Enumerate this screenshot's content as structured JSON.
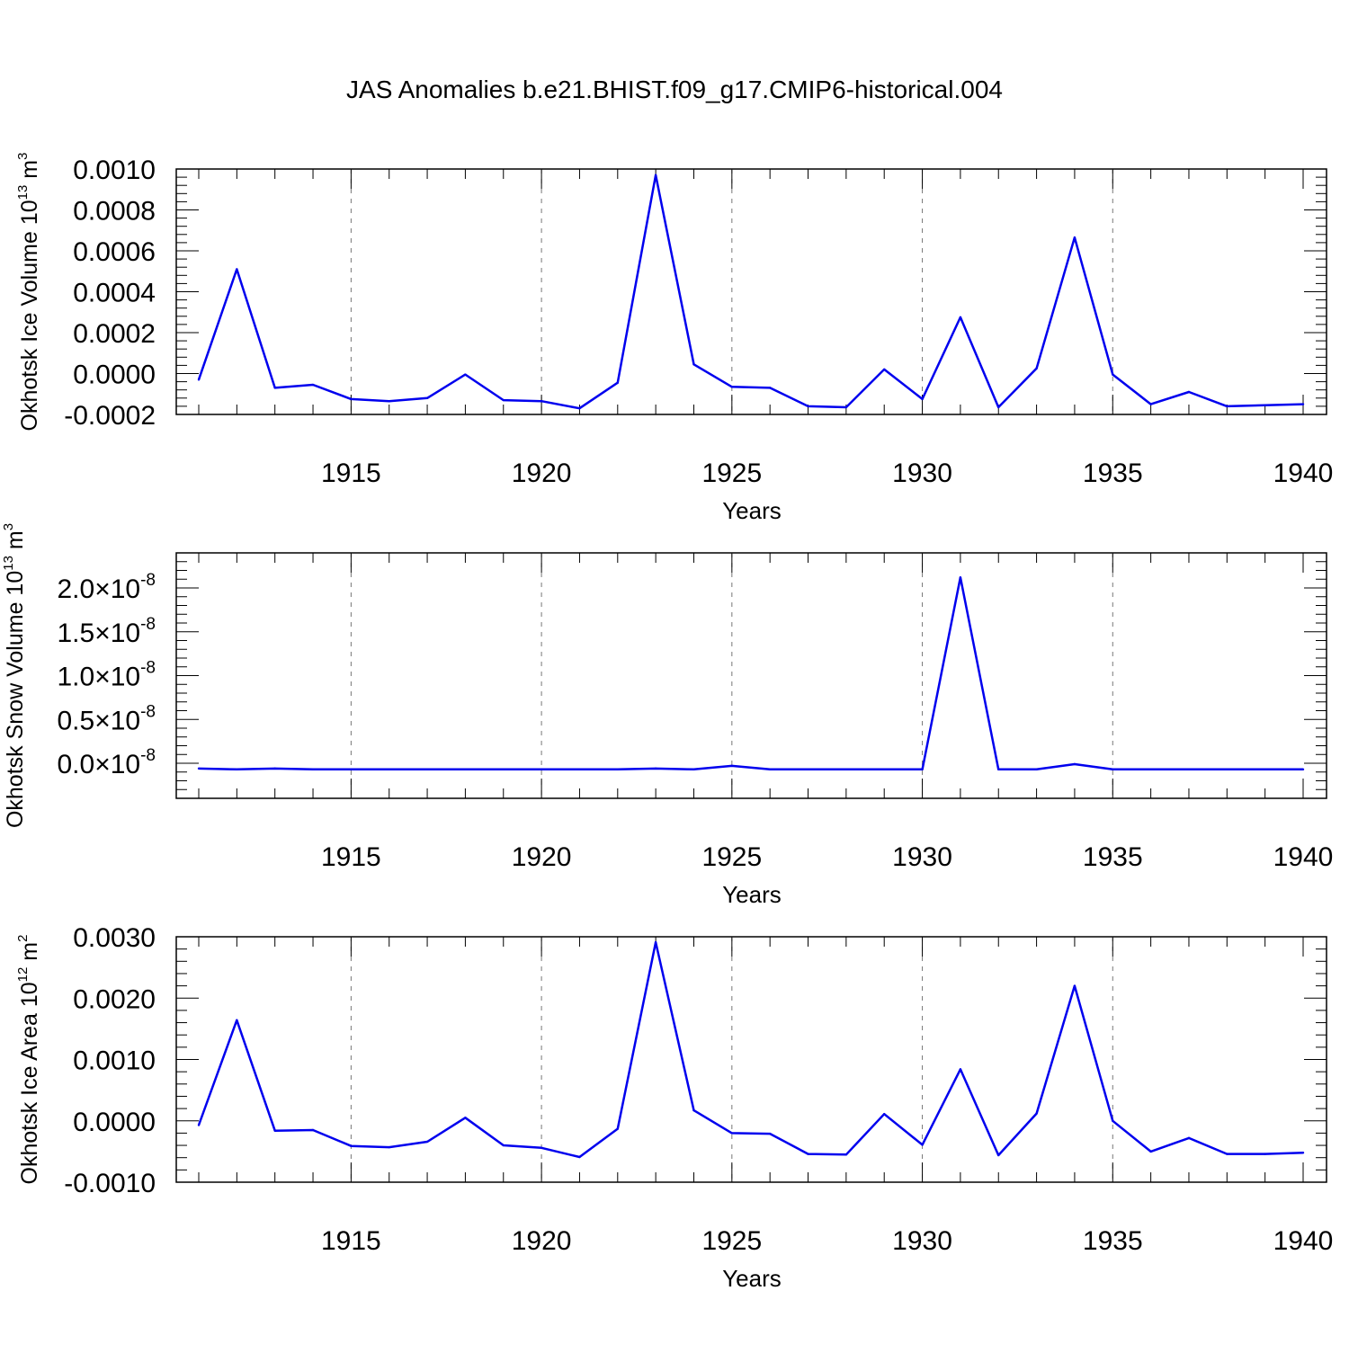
{
  "figure": {
    "title": "JAS Anomalies b.e21.BHIST.f09_g17.CMIP6-historical.004"
  },
  "colors": {
    "line": "#0000ee",
    "axis": "#000000",
    "grid": "#777777"
  },
  "chart_data": [
    {
      "type": "line",
      "ylabel": "Okhotsk Ice Volume 10",
      "ylabel_exp": "13",
      "ylabel_unit": " m",
      "ylabel_unit_exp": "3",
      "xlabel": "Years",
      "xlim": [
        1911,
        1940
      ],
      "ylim": [
        -0.0002,
        0.001
      ],
      "x_ticks": [
        1915,
        1920,
        1925,
        1930,
        1935,
        1940
      ],
      "y_ticks": [
        -0.0002,
        0.0,
        0.0002,
        0.0004,
        0.0006,
        0.0008,
        0.001
      ],
      "y_tick_labels": [
        "-0.0002",
        "0.0000",
        "0.0002",
        "0.0004",
        "0.0006",
        "0.0008",
        "0.0010"
      ],
      "x": [
        1911,
        1912,
        1913,
        1914,
        1915,
        1916,
        1917,
        1918,
        1919,
        1920,
        1921,
        1922,
        1923,
        1924,
        1925,
        1926,
        1927,
        1928,
        1929,
        1930,
        1931,
        1932,
        1933,
        1934,
        1935,
        1936,
        1937,
        1938,
        1939,
        1940
      ],
      "series": [
        {
          "name": "Okhotsk Ice Volume",
          "values": [
            -3e-05,
            0.00051,
            -7e-05,
            -5.5e-05,
            -0.000125,
            -0.000135,
            -0.00012,
            -5e-06,
            -0.00013,
            -0.000135,
            -0.00017,
            -4.5e-05,
            0.00097,
            4.5e-05,
            -6.5e-05,
            -7e-05,
            -0.00016,
            -0.000165,
            2e-05,
            -0.000125,
            0.000275,
            -0.000165,
            2.5e-05,
            0.000665,
            -5e-06,
            -0.00015,
            -9e-05,
            -0.00016,
            -0.000155,
            -0.00015
          ]
        }
      ]
    },
    {
      "type": "line",
      "ylabel": "Okhotsk Snow Volume 10",
      "ylabel_exp": "13",
      "ylabel_unit": " m",
      "ylabel_unit_exp": "3",
      "xlabel": "Years",
      "xlim": [
        1911,
        1940
      ],
      "ylim": [
        -4e-09,
        2.4e-08
      ],
      "x_ticks": [
        1915,
        1920,
        1925,
        1930,
        1935,
        1940
      ],
      "y_ticks": [
        0.0,
        5e-09,
        1e-08,
        1.5e-08,
        2e-08
      ],
      "y_tick_mantissas": [
        "0.0",
        "0.5",
        "1.0",
        "1.5",
        "2.0"
      ],
      "y_tick_times": "×10",
      "y_tick_exp": "-8",
      "x": [
        1911,
        1912,
        1913,
        1914,
        1915,
        1916,
        1917,
        1918,
        1919,
        1920,
        1921,
        1922,
        1923,
        1924,
        1925,
        1926,
        1927,
        1928,
        1929,
        1930,
        1931,
        1932,
        1933,
        1934,
        1935,
        1936,
        1937,
        1938,
        1939,
        1940
      ],
      "series": [
        {
          "name": "Okhotsk Snow Volume",
          "values": [
            -6e-10,
            -7e-10,
            -6e-10,
            -7e-10,
            -7e-10,
            -7e-10,
            -7e-10,
            -7e-10,
            -7e-10,
            -7e-10,
            -7e-10,
            -7e-10,
            -6e-10,
            -7e-10,
            -3e-10,
            -7e-10,
            -7e-10,
            -7e-10,
            -7e-10,
            -7e-10,
            2.12e-08,
            -7e-10,
            -7e-10,
            -1e-10,
            -7e-10,
            -7e-10,
            -7e-10,
            -7e-10,
            -7e-10,
            -7e-10
          ]
        }
      ]
    },
    {
      "type": "line",
      "ylabel": "Okhotsk Ice Area 10",
      "ylabel_exp": "12",
      "ylabel_unit": " m",
      "ylabel_unit_exp": "2",
      "xlabel": "Years",
      "xlim": [
        1911,
        1940
      ],
      "ylim": [
        -0.001,
        0.003
      ],
      "x_ticks": [
        1915,
        1920,
        1925,
        1930,
        1935,
        1940
      ],
      "y_ticks": [
        -0.001,
        0.0,
        0.001,
        0.002,
        0.003
      ],
      "y_tick_labels": [
        "-0.0010",
        "0.0000",
        "0.0010",
        "0.0020",
        "0.0030"
      ],
      "x": [
        1911,
        1912,
        1913,
        1914,
        1915,
        1916,
        1917,
        1918,
        1919,
        1920,
        1921,
        1922,
        1923,
        1924,
        1925,
        1926,
        1927,
        1928,
        1929,
        1930,
        1931,
        1932,
        1933,
        1934,
        1935,
        1936,
        1937,
        1938,
        1939,
        1940
      ],
      "series": [
        {
          "name": "Okhotsk Ice Area",
          "values": [
            -7e-05,
            0.00164,
            -0.00016,
            -0.00015,
            -0.00041,
            -0.00043,
            -0.00034,
            5e-05,
            -0.0004,
            -0.00044,
            -0.00059,
            -0.00013,
            0.00291,
            0.00017,
            -0.0002,
            -0.00021,
            -0.00054,
            -0.00055,
            0.00011,
            -0.00039,
            0.00084,
            -0.00056,
            0.00012,
            0.0022,
            0.0,
            -0.0005,
            -0.00028,
            -0.00054,
            -0.00054,
            -0.00052
          ]
        }
      ]
    }
  ]
}
